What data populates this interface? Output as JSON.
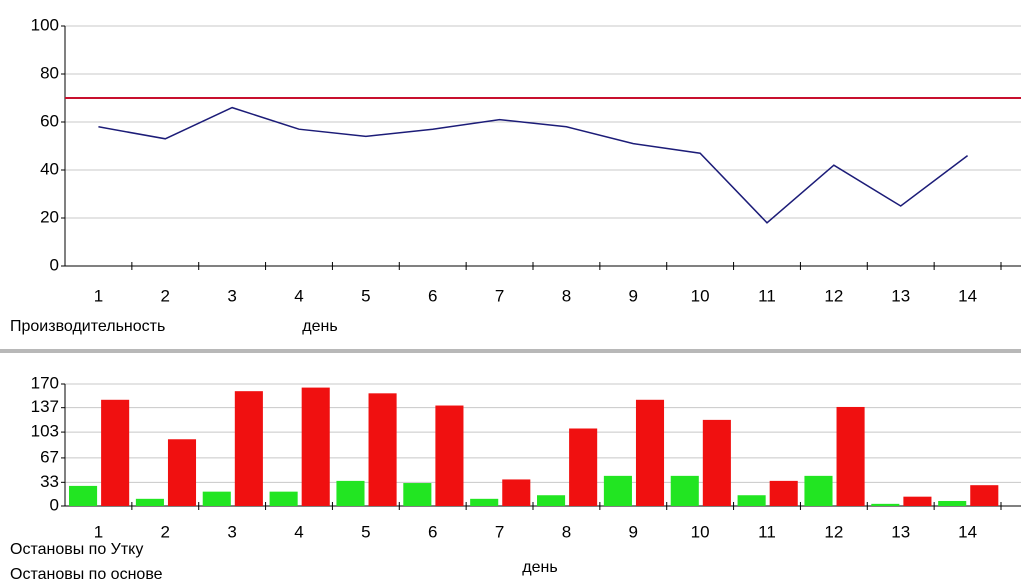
{
  "chart_data": [
    {
      "type": "line",
      "categories": [
        "1",
        "2",
        "3",
        "4",
        "5",
        "6",
        "7",
        "8",
        "9",
        "10",
        "11",
        "12",
        "13",
        "14"
      ],
      "series": [
        {
          "name": "Производительность",
          "color": "#1c1c78",
          "values": [
            58,
            53,
            66,
            57,
            54,
            57,
            61,
            58,
            51,
            47,
            18,
            42,
            25,
            46
          ]
        }
      ],
      "threshold": {
        "value": 70,
        "color": "#c8102e"
      },
      "x_label": "день",
      "ylim": [
        0,
        100
      ],
      "yticks": [
        0,
        20,
        40,
        60,
        80,
        100
      ],
      "grid": true
    },
    {
      "type": "bar",
      "categories": [
        "1",
        "2",
        "3",
        "4",
        "5",
        "6",
        "7",
        "8",
        "9",
        "10",
        "11",
        "12",
        "13",
        "14"
      ],
      "series": [
        {
          "name": "Остановы по Утку",
          "color": "#22e522",
          "values": [
            28,
            10,
            20,
            20,
            35,
            32,
            10,
            15,
            42,
            42,
            15,
            42,
            3,
            7
          ]
        },
        {
          "name": "Остановы по основе",
          "color": "#f01010",
          "values": [
            148,
            93,
            160,
            165,
            157,
            140,
            37,
            108,
            148,
            120,
            35,
            138,
            13,
            29
          ]
        }
      ],
      "x_label": "день",
      "ylim": [
        0,
        170
      ],
      "yticks": [
        0,
        33,
        67,
        103,
        137,
        170
      ],
      "grid": true
    }
  ]
}
